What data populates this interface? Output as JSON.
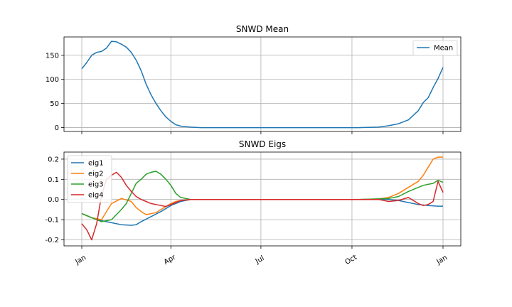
{
  "chart_data": [
    {
      "type": "line",
      "title": "SNWD Mean",
      "xlabel": "",
      "ylabel": "",
      "x_range": [
        0,
        365
      ],
      "ylim": [
        -8,
        188
      ],
      "yticks": [
        0,
        50,
        100,
        150
      ],
      "xticks": [
        0,
        90,
        181,
        273,
        365
      ],
      "grid": true,
      "legend": "top-right",
      "series": [
        {
          "name": "Mean",
          "color": "#1f77b4",
          "x": [
            0,
            5,
            10,
            15,
            20,
            25,
            30,
            35,
            40,
            45,
            50,
            55,
            60,
            65,
            70,
            75,
            80,
            85,
            90,
            95,
            100,
            110,
            120,
            130,
            150,
            200,
            250,
            280,
            300,
            310,
            320,
            330,
            340,
            345,
            350,
            355,
            360,
            365
          ],
          "y": [
            122,
            135,
            150,
            156,
            158,
            165,
            179,
            178,
            173,
            167,
            156,
            140,
            118,
            90,
            68,
            50,
            35,
            22,
            13,
            6,
            3,
            1,
            0,
            0,
            0,
            0,
            0,
            0,
            1,
            4,
            8,
            16,
            35,
            52,
            62,
            83,
            102,
            125
          ]
        }
      ]
    },
    {
      "type": "line",
      "title": "SNWD Eigs",
      "xlabel": "",
      "ylabel": "",
      "x_range": [
        0,
        365
      ],
      "ylim": [
        -0.23,
        0.235
      ],
      "yticks": [
        -0.2,
        -0.1,
        0.0,
        0.1,
        0.2
      ],
      "xticks": [
        0,
        90,
        181,
        273,
        365
      ],
      "xtick_labels": [
        "Jan",
        "Apr",
        "Jul",
        "Oct",
        "Jan"
      ],
      "grid": true,
      "legend": "top-left",
      "series": [
        {
          "name": "eig1",
          "color": "#1f77b4",
          "x": [
            0,
            10,
            20,
            30,
            40,
            50,
            55,
            60,
            70,
            80,
            90,
            100,
            110,
            150,
            200,
            250,
            280,
            300,
            310,
            320,
            330,
            340,
            350,
            360,
            365
          ],
          "y": [
            -0.07,
            -0.09,
            -0.105,
            -0.115,
            -0.125,
            -0.128,
            -0.125,
            -0.11,
            -0.085,
            -0.06,
            -0.03,
            -0.01,
            0,
            0,
            0,
            0,
            0,
            0.002,
            0.0,
            -0.005,
            -0.015,
            -0.025,
            -0.03,
            -0.033,
            -0.033
          ]
        },
        {
          "name": "eig2",
          "color": "#ff7f0e",
          "x": [
            0,
            10,
            20,
            30,
            40,
            45,
            50,
            55,
            60,
            65,
            70,
            75,
            80,
            85,
            90,
            95,
            100,
            110,
            150,
            200,
            250,
            280,
            300,
            310,
            320,
            330,
            340,
            345,
            350,
            355,
            360,
            365
          ],
          "y": [
            -0.07,
            -0.09,
            -0.1,
            -0.02,
            0.005,
            -0.002,
            -0.01,
            -0.04,
            -0.06,
            -0.075,
            -0.07,
            -0.065,
            -0.05,
            -0.035,
            -0.02,
            -0.01,
            -0.005,
            0,
            0,
            0,
            0,
            0,
            0.003,
            0.01,
            0.03,
            0.06,
            0.09,
            0.12,
            0.16,
            0.2,
            0.21,
            0.21
          ]
        },
        {
          "name": "eig3",
          "color": "#2ca02c",
          "x": [
            0,
            10,
            20,
            30,
            40,
            45,
            50,
            55,
            60,
            65,
            70,
            75,
            80,
            85,
            90,
            95,
            100,
            110,
            150,
            200,
            250,
            280,
            300,
            310,
            320,
            330,
            340,
            345,
            350,
            355,
            360,
            365
          ],
          "y": [
            -0.07,
            -0.09,
            -0.11,
            -0.1,
            -0.05,
            -0.02,
            0.03,
            0.08,
            0.1,
            0.125,
            0.135,
            0.14,
            0.125,
            0.1,
            0.07,
            0.03,
            0.01,
            0,
            0,
            0,
            0,
            0,
            0.003,
            0.005,
            0.015,
            0.04,
            0.06,
            0.07,
            0.075,
            0.08,
            0.095,
            0.085
          ]
        },
        {
          "name": "eig4",
          "color": "#d62728",
          "x": [
            0,
            5,
            10,
            15,
            20,
            25,
            30,
            35,
            40,
            45,
            50,
            55,
            60,
            65,
            70,
            75,
            80,
            85,
            90,
            95,
            100,
            110,
            150,
            200,
            250,
            280,
            300,
            310,
            320,
            330,
            340,
            345,
            350,
            355,
            360,
            365
          ],
          "y": [
            -0.12,
            -0.15,
            -0.2,
            -0.12,
            0.02,
            0.1,
            0.12,
            0.135,
            0.11,
            0.07,
            0.04,
            0.015,
            0.0,
            -0.01,
            -0.02,
            -0.025,
            -0.03,
            -0.035,
            -0.025,
            -0.015,
            -0.005,
            0,
            0,
            0,
            0,
            0,
            0.0,
            -0.01,
            -0.005,
            0.01,
            -0.02,
            -0.03,
            -0.025,
            -0.01,
            0.09,
            0.035
          ]
        }
      ]
    }
  ]
}
